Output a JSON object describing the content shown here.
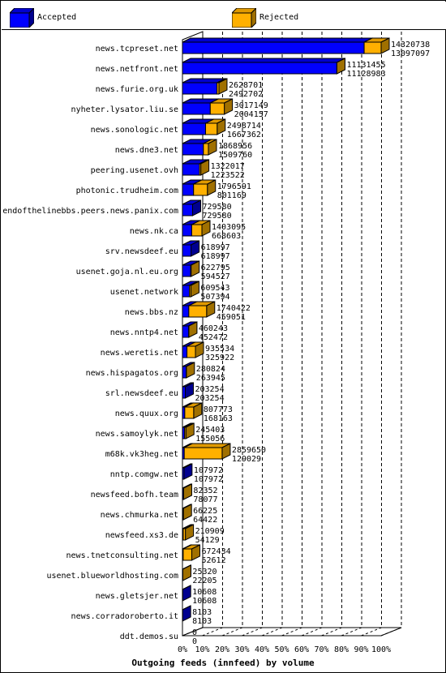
{
  "colors": {
    "accepted_front": "#0000ff",
    "accepted_top": "#0000d0",
    "accepted_side": "#000090",
    "rejected_front": "#ffb000",
    "rejected_top": "#e09a00",
    "rejected_side": "#a07000",
    "plot_bg": "#ffffff"
  },
  "legend": {
    "accepted_label": "Accepted",
    "rejected_label": "Rejected",
    "accepted_icon": "blue-cube-swatch",
    "rejected_icon": "orange-cube-swatch"
  },
  "chart_data": {
    "type": "bar",
    "orientation": "horizontal",
    "xlabel": "Outgoing feeds (innfeed) by volume",
    "ticks": [
      "0%",
      "10%",
      "20%",
      "30%",
      "40%",
      "50%",
      "60%",
      "70%",
      "80%",
      "90%",
      "100%"
    ],
    "xlim": [
      0,
      14320738
    ],
    "grid": true,
    "legend_position": "top",
    "categories": [
      "news.tcpreset.net",
      "news.netfront.net",
      "news.furie.org.uk",
      "nyheter.lysator.liu.se",
      "news.sonologic.net",
      "news.dne3.net",
      "peering.usenet.ovh",
      "photonic.trudheim.com",
      "endofthelinebbs.peers.news.panix.com",
      "news.nk.ca",
      "srv.newsdeef.eu",
      "usenet.goja.nl.eu.org",
      "usenet.network",
      "news.bbs.nz",
      "news.nntp4.net",
      "news.weretis.net",
      "news.hispagatos.org",
      "srl.newsdeef.eu",
      "news.quux.org",
      "news.samoylyk.net",
      "m68k.vk3heg.net",
      "nntp.comgw.net",
      "newsfeed.bofh.team",
      "news.chmurka.net",
      "newsfeed.xs3.de",
      "news.tnetconsulting.net",
      "usenet.blueworldhosting.com",
      "news.gletsjer.net",
      "news.corradoroberto.it",
      "ddt.demos.su"
    ],
    "series": [
      {
        "name": "Accepted",
        "values": [
          13097097,
          11128983,
          2492702,
          2004157,
          1667362,
          1509760,
          1223522,
          801169,
          729580,
          668603,
          618997,
          594527,
          507394,
          459051,
          452472,
          325922,
          263945,
          203254,
          168163,
          155056,
          129029,
          107972,
          78077,
          64422,
          54129,
          52612,
          22205,
          10608,
          8103,
          0
        ]
      },
      {
        "name": "Rejected",
        "values": [
          14320738,
          11131455,
          2628701,
          3017149,
          2498714,
          1868956,
          1322017,
          1796591,
          729580,
          1403095,
          618997,
          622795,
          609543,
          1740422,
          460243,
          935534,
          280824,
          203254,
          807773,
          245403,
          2859650,
          107972,
          82352,
          66225,
          210909,
          672434,
          25320,
          10608,
          8103,
          0
        ]
      }
    ]
  }
}
